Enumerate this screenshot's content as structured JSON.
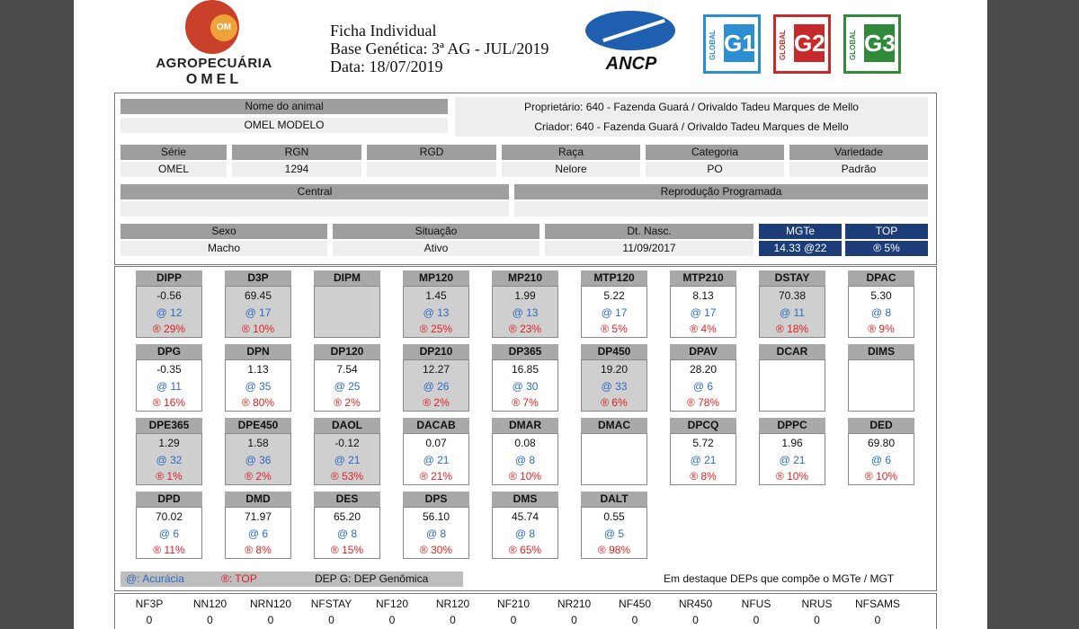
{
  "header": {
    "logo_top": "AGROPECUÁRIA",
    "logo_bottom": "OMEL",
    "logo_badge": "OM",
    "ficha_title": "Ficha Individual",
    "base_genetica": "Base Genética: 3ª AG - JUL/2019",
    "date_line": "Data: 18/07/2019",
    "ancp_text": "ANCP",
    "badges": [
      {
        "side": "GLOBAL",
        "num": "G1",
        "color": "#2a8ed0"
      },
      {
        "side": "GLOBAL",
        "num": "G2",
        "color": "#c62a2a"
      },
      {
        "side": "GLOBAL",
        "num": "G3",
        "color": "#2f8a3a"
      }
    ]
  },
  "animal": {
    "nome_label": "Nome do animal",
    "nome": "OMEL MODELO",
    "proprietario": "Proprietário: 640 - Fazenda Guará / Orivaldo Tadeu Marques de Mello",
    "criador": "Criador: 640 - Fazenda Guará / Orivaldo Tadeu Marques de Mello",
    "serie_label": "Série",
    "serie": "OMEL",
    "rgn_label": "RGN",
    "rgn": "1294",
    "rgd_label": "RGD",
    "rgd": "",
    "raca_label": "Raça",
    "raca": "Nelore",
    "categoria_label": "Categoria",
    "categoria": "PO",
    "variedade_label": "Variedade",
    "variedade": "Padrão",
    "central_label": "Central",
    "central": "",
    "reproducao_label": "Reprodução Programada",
    "reproducao": "",
    "sexo_label": "Sexo",
    "sexo": "Macho",
    "situacao_label": "Situação",
    "situacao": "Ativo",
    "nasc_label": "Dt. Nasc.",
    "nasc": "11/09/2017",
    "mgte_label": "MGTe",
    "mgte": "14.33 @22",
    "top_label": "TOP",
    "top": "® 5%"
  },
  "deps": [
    {
      "name": "DIPP",
      "value": "-0.56",
      "acc": "@ 12",
      "top": "® 29%",
      "hl": true
    },
    {
      "name": "D3P",
      "value": "69.45",
      "acc": "@ 17",
      "top": "® 10%",
      "hl": true
    },
    {
      "name": "DIPM",
      "value": "",
      "acc": "",
      "top": "",
      "hl": true
    },
    {
      "name": "MP120",
      "value": "1.45",
      "acc": "@ 13",
      "top": "® 25%",
      "hl": true
    },
    {
      "name": "MP210",
      "value": "1.99",
      "acc": "@ 13",
      "top": "® 23%",
      "hl": true
    },
    {
      "name": "MTP120",
      "value": "5.22",
      "acc": "@ 17",
      "top": "® 5%",
      "hl": false
    },
    {
      "name": "MTP210",
      "value": "8.13",
      "acc": "@ 17",
      "top": "® 4%",
      "hl": false
    },
    {
      "name": "DSTAY",
      "value": "70.38",
      "acc": "@ 11",
      "top": "® 18%",
      "hl": true
    },
    {
      "name": "DPAC",
      "value": "5.30",
      "acc": "@ 8",
      "top": "® 9%",
      "hl": false
    },
    {
      "name": "DPG",
      "value": "-0.35",
      "acc": "@ 11",
      "top": "® 16%",
      "hl": false
    },
    {
      "name": "DPN",
      "value": "1.13",
      "acc": "@ 35",
      "top": "® 80%",
      "hl": false
    },
    {
      "name": "DP120",
      "value": "7.54",
      "acc": "@ 25",
      "top": "® 2%",
      "hl": false
    },
    {
      "name": "DP210",
      "value": "12.27",
      "acc": "@ 26",
      "top": "® 2%",
      "hl": true
    },
    {
      "name": "DP365",
      "value": "16.85",
      "acc": "@ 30",
      "top": "® 7%",
      "hl": false
    },
    {
      "name": "DP450",
      "value": "19.20",
      "acc": "@ 33",
      "top": "® 6%",
      "hl": true
    },
    {
      "name": "DPAV",
      "value": "28.20",
      "acc": "@ 6",
      "top": "® 78%",
      "hl": false
    },
    {
      "name": "DCAR",
      "value": "",
      "acc": "",
      "top": "",
      "hl": false
    },
    {
      "name": "DIMS",
      "value": "",
      "acc": "",
      "top": "",
      "hl": false
    },
    {
      "name": "DPE365",
      "value": "1.29",
      "acc": "@ 32",
      "top": "® 1%",
      "hl": true
    },
    {
      "name": "DPE450",
      "value": "1.58",
      "acc": "@ 36",
      "top": "® 2%",
      "hl": true
    },
    {
      "name": "DAOL",
      "value": "-0.12",
      "acc": "@ 21",
      "top": "® 53%",
      "hl": true
    },
    {
      "name": "DACAB",
      "value": "0.07",
      "acc": "@ 21",
      "top": "® 21%",
      "hl": false
    },
    {
      "name": "DMAR",
      "value": "0.08",
      "acc": "@ 8",
      "top": "® 10%",
      "hl": false
    },
    {
      "name": "DMAC",
      "value": "",
      "acc": "",
      "top": "",
      "hl": false
    },
    {
      "name": "DPCQ",
      "value": "5.72",
      "acc": "@ 21",
      "top": "® 8%",
      "hl": false
    },
    {
      "name": "DPPC",
      "value": "1.96",
      "acc": "@ 21",
      "top": "® 10%",
      "hl": false
    },
    {
      "name": "DED",
      "value": "69.80",
      "acc": "@ 6",
      "top": "® 10%",
      "hl": false
    },
    {
      "name": "DPD",
      "value": "70.02",
      "acc": "@ 6",
      "top": "® 11%",
      "hl": false
    },
    {
      "name": "DMD",
      "value": "71.97",
      "acc": "@ 6",
      "top": "® 8%",
      "hl": false
    },
    {
      "name": "DES",
      "value": "65.20",
      "acc": "@ 8",
      "top": "® 15%",
      "hl": false
    },
    {
      "name": "DPS",
      "value": "56.10",
      "acc": "@ 8",
      "top": "® 30%",
      "hl": false
    },
    {
      "name": "DMS",
      "value": "45.74",
      "acc": "@ 8",
      "top": "® 65%",
      "hl": false
    },
    {
      "name": "DALT",
      "value": "0.55",
      "acc": "@ 5",
      "top": "® 98%",
      "hl": false
    }
  ],
  "legend": {
    "acuracia": "@: Acurácia",
    "top": "®: TOP",
    "dep_g": "DEP G: DEP Genômica",
    "destaque": "Em destaque DEPs que compõe o MGTe / MGT",
    "acc_color": "#2d6bc2",
    "top_color": "#d22222"
  },
  "bottom": [
    {
      "label": "NF3P",
      "value": "0"
    },
    {
      "label": "NN120",
      "value": "0"
    },
    {
      "label": "NRN120",
      "value": "0"
    },
    {
      "label": "NFSTAY",
      "value": "0"
    },
    {
      "label": "NF120",
      "value": "0"
    },
    {
      "label": "NR120",
      "value": "0"
    },
    {
      "label": "NF210",
      "value": "0"
    },
    {
      "label": "NR210",
      "value": "0"
    },
    {
      "label": "NF450",
      "value": "0"
    },
    {
      "label": "NR450",
      "value": "0"
    },
    {
      "label": "NFUS",
      "value": "0"
    },
    {
      "label": "NRUS",
      "value": "0"
    },
    {
      "label": "NFSAMS",
      "value": "0"
    }
  ]
}
